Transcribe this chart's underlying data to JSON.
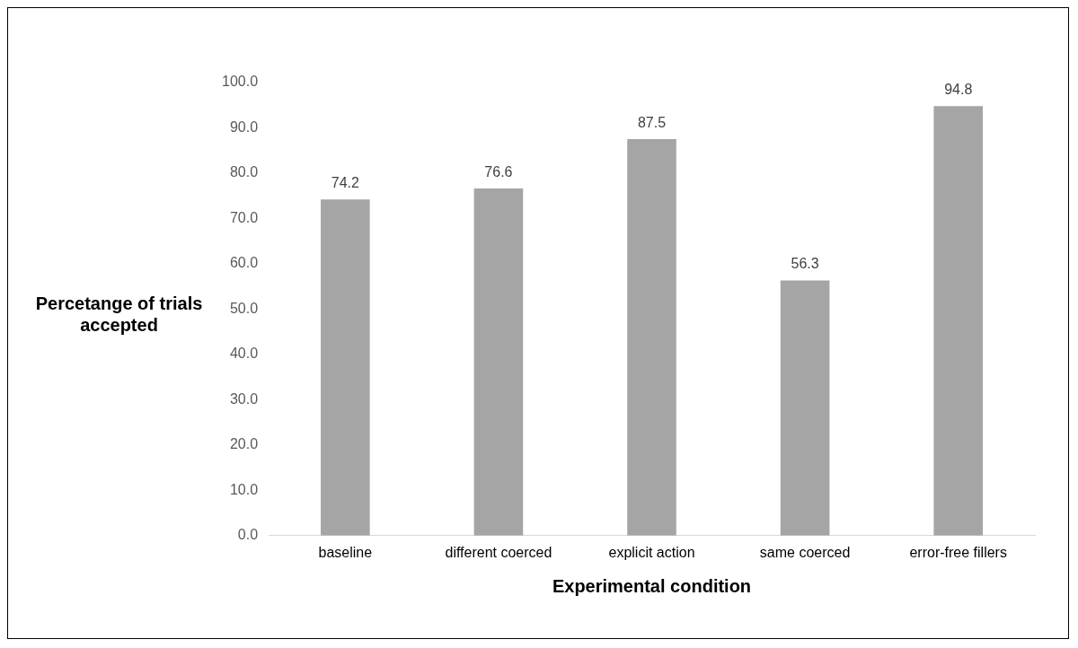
{
  "chart_data": {
    "type": "bar",
    "xlabel": "Experimental condition",
    "ylabel": "Percetange of trials accepted",
    "categories": [
      "baseline",
      "different coerced",
      "explicit action",
      "same coerced",
      "error-free fillers"
    ],
    "values": [
      74.2,
      76.6,
      87.5,
      56.3,
      94.8
    ],
    "color": "#a5a5a5",
    "ylim": [
      0,
      100
    ],
    "yticks": [
      {
        "value": 0,
        "label": "0.0"
      },
      {
        "value": 10,
        "label": "10.0"
      },
      {
        "value": 20,
        "label": "20.0"
      },
      {
        "value": 30,
        "label": "30.0"
      },
      {
        "value": 40,
        "label": "40.0"
      },
      {
        "value": 50,
        "label": "50.0"
      },
      {
        "value": 60,
        "label": "60.0"
      },
      {
        "value": 70,
        "label": "70.0"
      },
      {
        "value": 80,
        "label": "80.0"
      },
      {
        "value": 90,
        "label": "90.0"
      },
      {
        "value": 100,
        "label": "100.0"
      }
    ],
    "grid": false,
    "legend": false,
    "data_labels": true
  }
}
